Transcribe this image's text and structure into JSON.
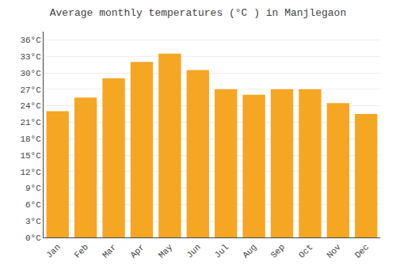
{
  "chart_data": {
    "type": "bar",
    "title": "Average monthly temperatures (°C ) in Manjlegaon",
    "categories": [
      "Jan",
      "Feb",
      "Mar",
      "Apr",
      "May",
      "Jun",
      "Jul",
      "Aug",
      "Sep",
      "Oct",
      "Nov",
      "Dec"
    ],
    "values": [
      23.0,
      25.5,
      29.0,
      32.0,
      33.5,
      30.5,
      27.0,
      26.0,
      27.0,
      27.0,
      24.5,
      22.5
    ],
    "color": "#F5A623",
    "ylim": [
      0,
      37.5
    ],
    "yticks": [
      {
        "value": 0,
        "label": "0°C"
      },
      {
        "value": 3,
        "label": "3°C"
      },
      {
        "value": 6,
        "label": "6°C"
      },
      {
        "value": 9,
        "label": "9°C"
      },
      {
        "value": 12,
        "label": "12°C"
      },
      {
        "value": 15,
        "label": "15°C"
      },
      {
        "value": 18,
        "label": "18°C"
      },
      {
        "value": 21,
        "label": "21°C"
      },
      {
        "value": 24,
        "label": "24°C"
      },
      {
        "value": 27,
        "label": "27°C"
      },
      {
        "value": 30,
        "label": "30°C"
      },
      {
        "value": 33,
        "label": "33°C"
      },
      {
        "value": 36,
        "label": "36°C"
      }
    ],
    "grid": true
  }
}
